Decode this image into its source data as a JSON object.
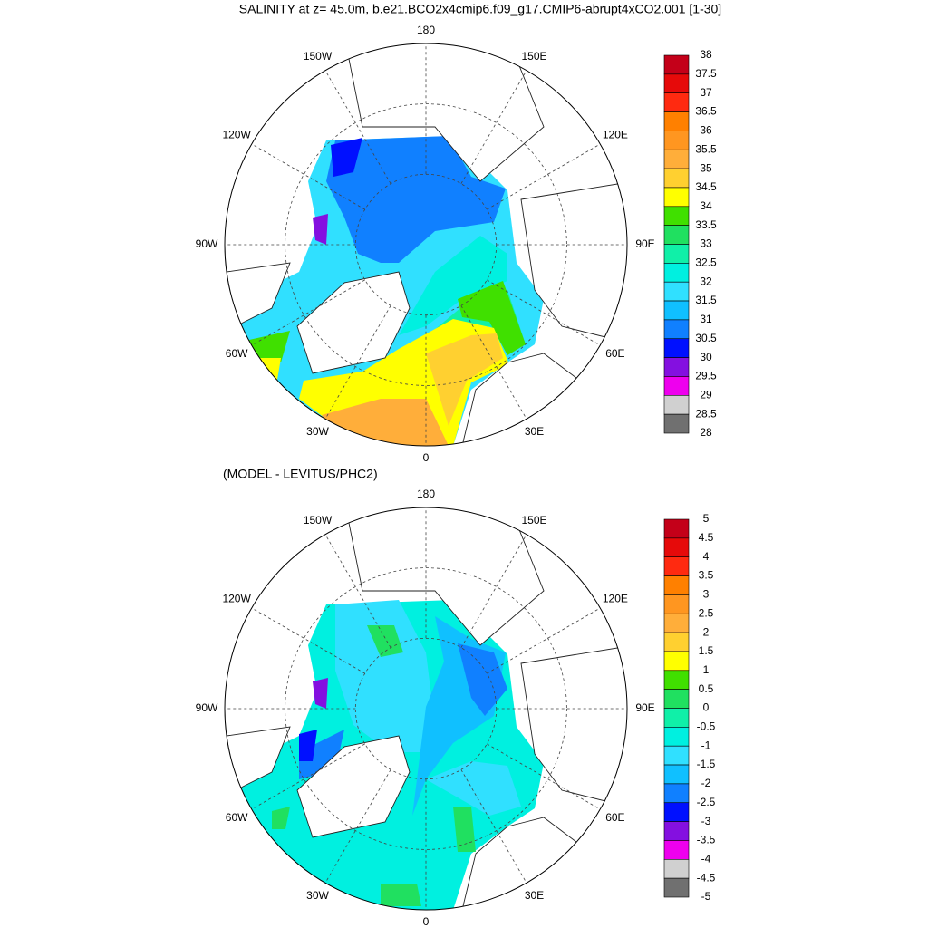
{
  "title": "SALINITY at z=  45.0m, b.e21.BCO2x4cmip6.f09_g17.CMIP6-abrupt4xCO2.001 [1-30]",
  "lon_labels": [
    "0",
    "30E",
    "60E",
    "90E",
    "120E",
    "150E",
    "180",
    "150W",
    "120W",
    "90W",
    "60W",
    "30W"
  ],
  "colorbar_colors": [
    "#c40019",
    "#e60a0a",
    "#ff2a10",
    "#ff8000",
    "#ff9620",
    "#ffae3a",
    "#ffd030",
    "#ffff00",
    "#40e000",
    "#20e060",
    "#10f0a8",
    "#00f0e0",
    "#30e0ff",
    "#10c0ff",
    "#1080ff",
    "#0010ff",
    "#8410e0",
    "#ee00ee",
    "#d0d0d0",
    "#707070"
  ],
  "panels": [
    {
      "colorbar_labels": [
        38,
        37.5,
        37,
        36.5,
        36,
        35.5,
        35,
        34.5,
        34,
        33.5,
        33,
        32.5,
        32,
        31.5,
        31,
        30.5,
        30,
        29.5,
        29,
        28.5,
        28
      ]
    },
    {
      "subtitle": "(MODEL - LEVITUS/PHC2)",
      "colorbar_labels": [
        5,
        4.5,
        4,
        3.5,
        3,
        2.5,
        2,
        1.5,
        1,
        0.5,
        0,
        -0.5,
        -1,
        -1.5,
        -2,
        -2.5,
        -3,
        -3.5,
        -4,
        -4.5,
        -5
      ]
    }
  ]
}
